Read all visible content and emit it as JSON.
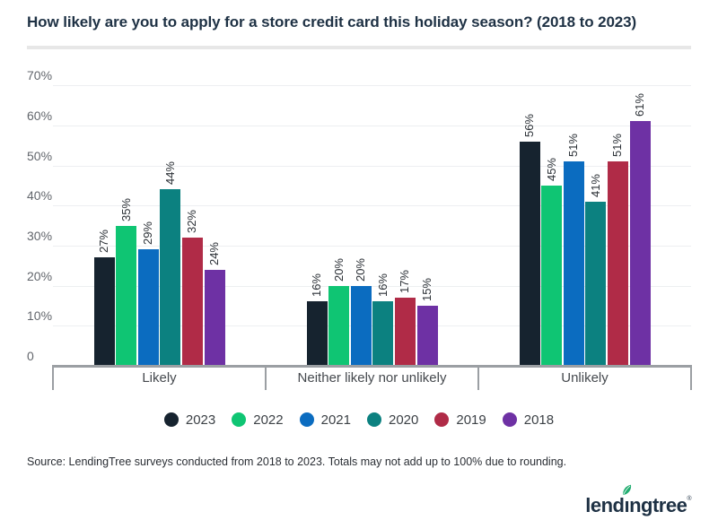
{
  "title": "How likely are you to apply for a store credit card this holiday season? (2018 to 2023)",
  "source": "Source: LendingTree surveys conducted from 2018 to 2023. Totals may not add up to 100% due to rounding.",
  "logo": {
    "part1": "lend",
    "part2": "ı",
    "part3": "ngtree",
    "mark": "®",
    "leaf_color": "#21ad70",
    "text_color": "#1e3144"
  },
  "chart_data": {
    "type": "bar",
    "title": "How likely are you to apply for a store credit card this holiday season? (2018 to 2023)",
    "categories": [
      "Likely",
      "Neither likely nor unlikely",
      "Unlikely"
    ],
    "series": [
      {
        "name": "2023",
        "color": "#16232f",
        "values": [
          27,
          16,
          56
        ]
      },
      {
        "name": "2022",
        "color": "#0fc573",
        "values": [
          35,
          20,
          45
        ]
      },
      {
        "name": "2021",
        "color": "#0b6cc0",
        "values": [
          29,
          20,
          51
        ]
      },
      {
        "name": "2020",
        "color": "#0c8180",
        "values": [
          44,
          16,
          41
        ]
      },
      {
        "name": "2019",
        "color": "#b02b47",
        "values": [
          32,
          17,
          51
        ]
      },
      {
        "name": "2018",
        "color": "#6e31a4",
        "values": [
          24,
          15,
          61
        ]
      }
    ],
    "value_suffix": "%",
    "value_labels": {
      "Likely": [
        "27%",
        "35%",
        "29%",
        "44%",
        "32%",
        "24%"
      ],
      "Neither likely nor unlikely": [
        "16%",
        "20%",
        "20%",
        "16%",
        "17%",
        "15%"
      ],
      "Unlikely": [
        "56%",
        "45%",
        "51%",
        "41%",
        "51%",
        "61%"
      ]
    },
    "xlabel": "",
    "ylabel": "",
    "ylim": [
      0,
      70
    ],
    "y_ticks": [
      "70%",
      "60%",
      "50%",
      "40%",
      "30%",
      "20%",
      "10%",
      "0"
    ],
    "grid": true,
    "legend_position": "bottom",
    "legend_labels": [
      "2023",
      "2022",
      "2021",
      "2020",
      "2019",
      "2018"
    ]
  }
}
